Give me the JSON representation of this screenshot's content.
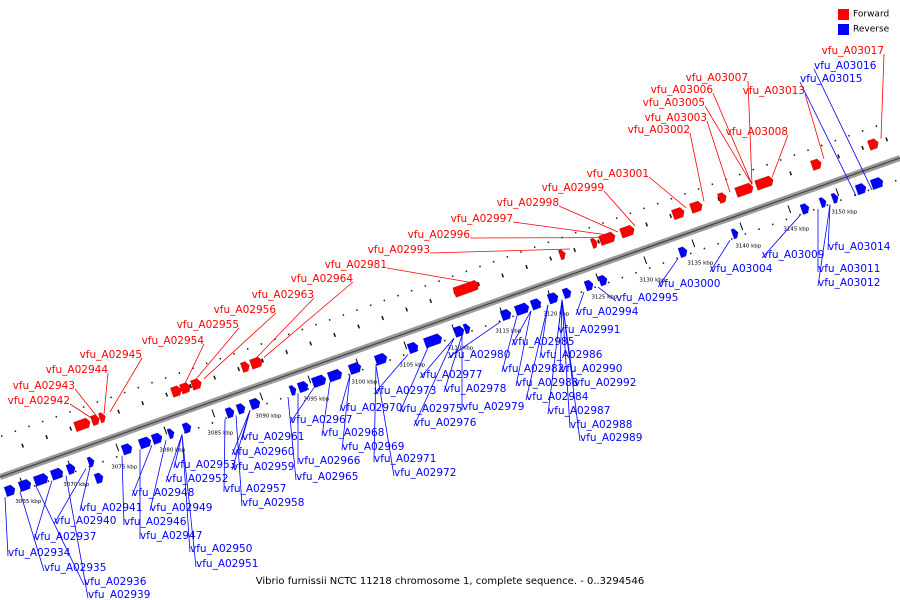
{
  "caption": "Vibrio furnissii NCTC 11218 chromosome 1, complete sequence. - 0..3294546",
  "legend": [
    {
      "label": "Forward",
      "color": "#ff0000"
    },
    {
      "label": "Reverse",
      "color": "#0000ff"
    }
  ],
  "colors": {
    "forward": "#ff0000",
    "reverse": "#0000ff",
    "forward_label": "#ff0000",
    "reverse_label": "#0000ff"
  },
  "ruler_labels": [
    "3065 kbp",
    "3070 kbp",
    "3075 kbp",
    "3080 kbp",
    "3085 kbp",
    "3090 kbp",
    "3095 kbp",
    "3100 kbp",
    "3105 kbp",
    "3110 kbp",
    "3115 kbp",
    "3120 kbp",
    "3125 kbp",
    "3130 kbp",
    "3135 kbp",
    "3140 kbp",
    "3145 kbp",
    "3150 kbp"
  ],
  "forward_genes": [
    "vfu_A02942",
    "vfu_A02943",
    "vfu_A02944",
    "vfu_A02945",
    "vfu_A02954",
    "vfu_A02955",
    "vfu_A02956",
    "vfu_A02963",
    "vfu_A02964",
    "vfu_A02981",
    "vfu_A02993",
    "vfu_A02996",
    "vfu_A02997",
    "vfu_A02998",
    "vfu_A02999",
    "vfu_A03001",
    "vfu_A03002",
    "vfu_A03003",
    "vfu_A03005",
    "vfu_A03006",
    "vfu_A03007",
    "vfu_A03008",
    "vfu_A03013",
    "vfu_A03017"
  ],
  "reverse_genes": [
    "vfu_A02934",
    "vfu_A02935",
    "vfu_A02936",
    "vfu_A02937",
    "vfu_A02939",
    "vfu_A02940",
    "vfu_A02941",
    "vfu_A02946",
    "vfu_A02947",
    "vfu_A02948",
    "vfu_A02949",
    "vfu_A02950",
    "vfu_A02951",
    "vfu_A02952",
    "vfu_A02953",
    "vfu_A02957",
    "vfu_A02958",
    "vfu_A02959",
    "vfu_A02960",
    "vfu_A02961",
    "vfu_A02965",
    "vfu_A02966",
    "vfu_A02967",
    "vfu_A02968",
    "vfu_A02969",
    "vfu_A02970",
    "vfu_A02971",
    "vfu_A02972",
    "vfu_A02973",
    "vfu_A02975",
    "vfu_A02976",
    "vfu_A02977",
    "vfu_A02978",
    "vfu_A02979",
    "vfu_A02980",
    "vfu_A02982",
    "vfu_A02983",
    "vfu_A02984",
    "vfu_A02985",
    "vfu_A02986",
    "vfu_A02987",
    "vfu_A02988",
    "vfu_A02989",
    "vfu_A02990",
    "vfu_A02991",
    "vfu_A02992",
    "vfu_A02994",
    "vfu_A02995",
    "vfu_A03000",
    "vfu_A03004",
    "vfu_A03009",
    "vfu_A03011",
    "vfu_A03012",
    "vfu_A03014",
    "vfu_A03015",
    "vfu_A03016"
  ]
}
